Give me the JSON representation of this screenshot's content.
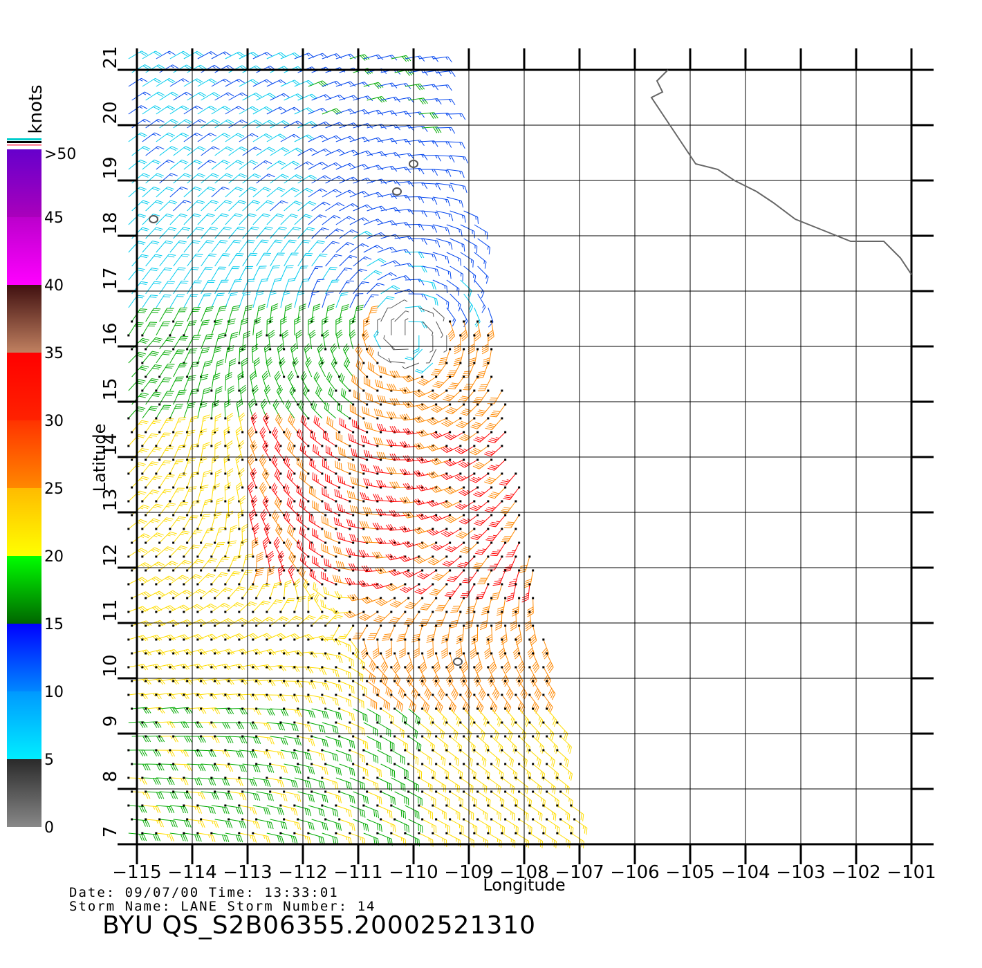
{
  "map": {
    "lon_range": [
      -115,
      -101
    ],
    "lat_range": [
      7,
      21
    ],
    "lon_ticks": [
      "-115",
      "-114",
      "-113",
      "-112",
      "-111",
      "-110",
      "-109",
      "-108",
      "-107",
      "-106",
      "-105",
      "-104",
      "-103",
      "-102",
      "-101"
    ],
    "lat_ticks": [
      "7",
      "8",
      "9",
      "10",
      "11",
      "12",
      "13",
      "14",
      "15",
      "16",
      "17",
      "18",
      "19",
      "20",
      "21"
    ],
    "xlabel": "Longitude",
    "ylabel": "Latitude",
    "grid": true,
    "coastline": [
      [
        -105.4,
        21.0
      ],
      [
        -105.6,
        20.8
      ],
      [
        -105.5,
        20.6
      ],
      [
        -105.7,
        20.5
      ],
      [
        -105.5,
        20.2
      ],
      [
        -105.3,
        19.9
      ],
      [
        -105.1,
        19.6
      ],
      [
        -104.9,
        19.3
      ],
      [
        -104.5,
        19.2
      ],
      [
        -104.2,
        19.0
      ],
      [
        -103.8,
        18.8
      ],
      [
        -103.5,
        18.6
      ],
      [
        -103.1,
        18.3
      ],
      [
        -102.6,
        18.1
      ],
      [
        -102.1,
        17.9
      ],
      [
        -101.8,
        17.9
      ],
      [
        -101.5,
        17.9
      ],
      [
        -101.2,
        17.6
      ],
      [
        -101.0,
        17.3
      ]
    ],
    "islands": [
      {
        "lon": -110.0,
        "lat": 19.3
      },
      {
        "lon": -110.3,
        "lat": 18.8
      },
      {
        "lon": -114.7,
        "lat": 18.3
      },
      {
        "lon": -109.2,
        "lat": 10.3
      }
    ],
    "swath": {
      "north_lat": 21.2,
      "south_lat": 7.0,
      "west_lon": -115.2,
      "east_lon_north": -109.5,
      "east_lon_south": -107.0
    }
  },
  "colorbar": {
    "unit": "knots",
    "max_label": ">50",
    "tick_labels": [
      "0",
      "5",
      "10",
      "15",
      "20",
      "25",
      "30",
      "35",
      "40",
      "45"
    ],
    "bands": [
      {
        "from": 0,
        "to": 5,
        "colors": [
          "#888888",
          "#2a2a2a"
        ]
      },
      {
        "from": 5,
        "to": 10,
        "colors": [
          "#00eeff",
          "#0099ff"
        ]
      },
      {
        "from": 10,
        "to": 15,
        "colors": [
          "#0088ff",
          "#0000ff"
        ]
      },
      {
        "from": 15,
        "to": 20,
        "colors": [
          "#006600",
          "#00ff00"
        ]
      },
      {
        "from": 20,
        "to": 25,
        "colors": [
          "#ffff00",
          "#ffbb00"
        ]
      },
      {
        "from": 25,
        "to": 30,
        "colors": [
          "#ff8800",
          "#ff3300"
        ]
      },
      {
        "from": 30,
        "to": 35,
        "colors": [
          "#ff2200",
          "#ff0000"
        ]
      },
      {
        "from": 35,
        "to": 40,
        "colors": [
          "#c08060",
          "#401010"
        ]
      },
      {
        "from": 40,
        "to": 45,
        "colors": [
          "#ff00ff",
          "#bb00cc"
        ]
      },
      {
        "from": 45,
        "to": 50,
        "colors": [
          "#aa00bb",
          "#6600cc"
        ]
      }
    ]
  },
  "wind_barbs": {
    "rows_lat": [
      21,
      20.5,
      20,
      19.5,
      19,
      18.5,
      18,
      17.5,
      17,
      16.5,
      16,
      15.5,
      15,
      14.5,
      14,
      13.5,
      13,
      12.5,
      12,
      11.5,
      11,
      10.5,
      10,
      9.5,
      9,
      8.5,
      8,
      7.5,
      7
    ],
    "spacing_deg": 0.25,
    "storm_center": {
      "lon": -110.1,
      "lat": 16.2
    },
    "speed_colors": [
      "#555555",
      "#00ccee",
      "#0044ee",
      "#00aa00",
      "#ffdd00",
      "#ff8800",
      "#ff0000",
      "#aa5533",
      "#aa00cc"
    ]
  },
  "info": {
    "date_line": "Date: 09/07/00   Time: 13:33:01",
    "storm_line": "Storm Name: LANE   Storm Number: 14",
    "file_label": "BYU QS_S2B06355.20002521310"
  }
}
